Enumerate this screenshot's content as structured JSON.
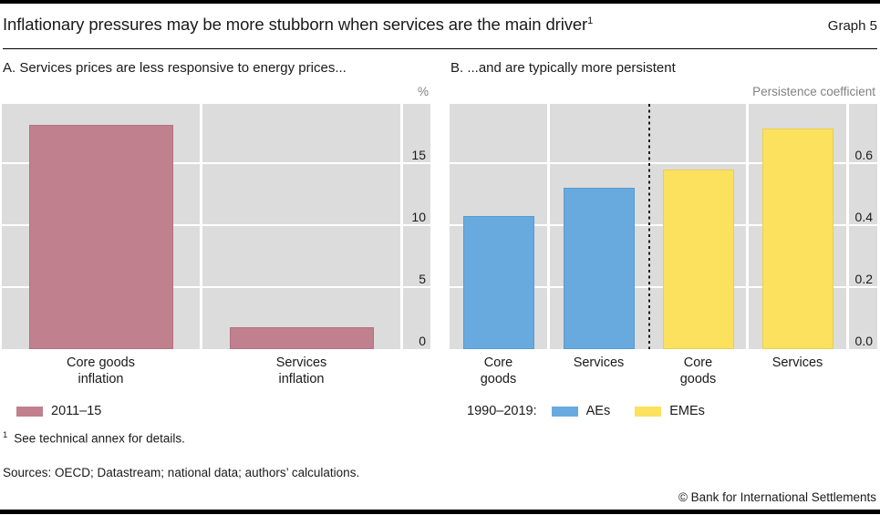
{
  "page": {
    "title": "Inflationary pressures may be more stubborn when services are the main driver",
    "title_superscript": "1",
    "graph_label": "Graph 5",
    "footnote_marker": "1",
    "footnote_text": "See technical annex for details.",
    "sources": "Sources: OECD; Datastream; national data; authors’ calculations.",
    "copyright": "© Bank for International Settlements"
  },
  "colors": {
    "rose": "#c0808e",
    "rose_border": "#b27282",
    "blue": "#68aadd",
    "blue_border": "#579ccf",
    "yellow": "#fbe15e",
    "yellow_border": "#e9cf52",
    "plot_bg": "#dcdcdc",
    "grid": "#ffffff",
    "unit_text": "#828282"
  },
  "chart_data": [
    {
      "type": "bar",
      "panel": "A",
      "title": "A. Services prices are less responsive to energy prices...",
      "unit": "%",
      "categories": [
        "Core goods\ninflation",
        "Services\ninflation"
      ],
      "bars": [
        {
          "category": "Core goods inflation",
          "value": 18.1,
          "color_key": "rose",
          "series": "2011–15"
        },
        {
          "category": "Services inflation",
          "value": 1.8,
          "color_key": "rose",
          "series": "2011–15"
        }
      ],
      "ytick_values": [
        0,
        5,
        10,
        15
      ],
      "ytick_labels": [
        "0",
        "5",
        "10",
        "15"
      ],
      "ylim": [
        0,
        19.8
      ],
      "grid": true,
      "legend_position": "bottom-left",
      "legend": [
        {
          "swatch_key": "rose",
          "label": "2011–15"
        }
      ]
    },
    {
      "type": "bar",
      "panel": "B",
      "title": "B. ...and are typically more persistent",
      "unit": "Persistence coefficient",
      "categories": [
        "Core\ngoods",
        "Services",
        "Core\ngoods",
        "Services"
      ],
      "bars": [
        {
          "category": "Core goods",
          "group": "AEs",
          "value": 0.43,
          "color_key": "blue",
          "series": "1990–2019"
        },
        {
          "category": "Services",
          "group": "AEs",
          "value": 0.52,
          "color_key": "blue",
          "series": "1990–2019"
        },
        {
          "category": "Core goods",
          "group": "EMEs",
          "value": 0.58,
          "color_key": "yellow",
          "series": "1990–2019"
        },
        {
          "category": "Services",
          "group": "EMEs",
          "value": 0.71,
          "color_key": "yellow",
          "series": "1990–2019"
        }
      ],
      "divider": "dotted vertical line between AEs and EMEs groups",
      "ytick_values": [
        0.0,
        0.2,
        0.4,
        0.6
      ],
      "ytick_labels": [
        "0.0",
        "0.2",
        "0.4",
        "0.6"
      ],
      "ylim": [
        0,
        0.79
      ],
      "grid": true,
      "legend_position": "bottom-left",
      "legend_prefix": "1990–2019:",
      "legend": [
        {
          "swatch_key": "blue",
          "label": "AEs"
        },
        {
          "swatch_key": "yellow",
          "label": "EMEs"
        }
      ]
    }
  ]
}
